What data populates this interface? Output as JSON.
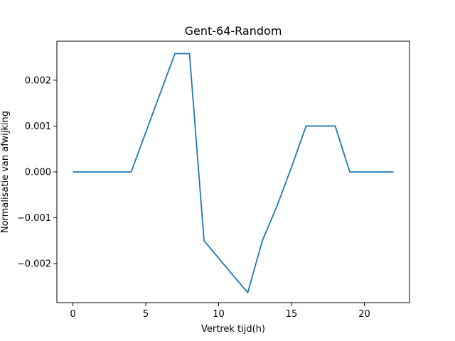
{
  "chart_data": {
    "type": "line",
    "title": "Gent-64-Random",
    "xlabel": "Vertrek tijd(h)",
    "ylabel": "Normalisatie van afwijking",
    "xlim": [
      -1.1,
      23.1
    ],
    "ylim": [
      -0.00285,
      0.00285
    ],
    "xticks": [
      0,
      5,
      10,
      15,
      20
    ],
    "xtick_labels": [
      "0",
      "5",
      "10",
      "15",
      "20"
    ],
    "yticks": [
      -0.002,
      -0.001,
      0.0,
      0.001,
      0.002
    ],
    "ytick_labels": [
      "−0.002",
      "−0.001",
      "0.000",
      "0.001",
      "0.002"
    ],
    "grid": false,
    "series": [
      {
        "color": "#1f77b4",
        "x": [
          0,
          1,
          2,
          3,
          4,
          5,
          6,
          7,
          8,
          9,
          10,
          11,
          12,
          13,
          14,
          15,
          16,
          17,
          18,
          19,
          20,
          21,
          22
        ],
        "y": [
          0,
          0,
          0,
          0,
          0,
          0.00086,
          0.00172,
          0.00258,
          0.00258,
          -0.0015,
          -0.00188,
          -0.00226,
          -0.00263,
          -0.0015,
          -0.00075,
          0.0001,
          0.001,
          0.001,
          0.001,
          0,
          0,
          0,
          0
        ]
      }
    ]
  }
}
